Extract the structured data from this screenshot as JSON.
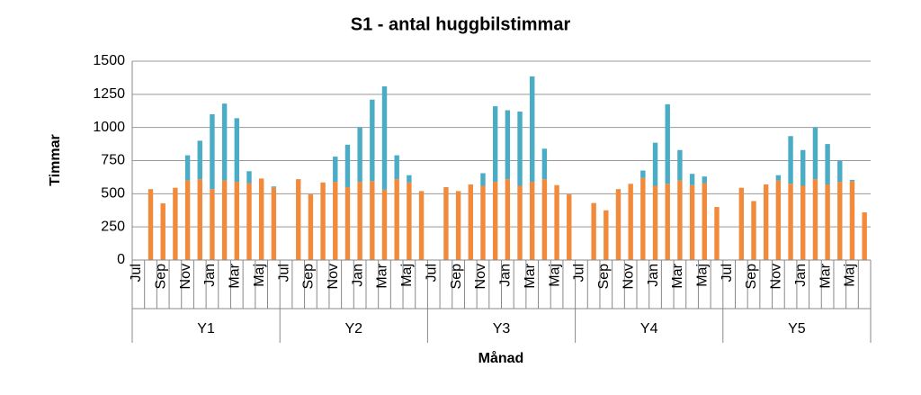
{
  "chart_data": {
    "type": "bar",
    "stacked": true,
    "title": "S1 - antal huggbilstimmar",
    "x_label": "Månad",
    "y_label": "Timmar",
    "categories": [
      "Jul",
      null,
      "Sep",
      null,
      "Nov",
      null,
      "Jan",
      null,
      "Mar",
      null,
      "Maj",
      null,
      "Jul",
      null,
      "Sep",
      null,
      "Nov",
      null,
      "Jan",
      null,
      "Mar",
      null,
      "Maj",
      null,
      "Jul",
      null,
      "Sep",
      null,
      "Nov",
      null,
      "Jan",
      null,
      "Mar",
      null,
      "Maj",
      null,
      "Jul",
      null,
      "Sep",
      null,
      "Nov",
      null,
      "Jan",
      null,
      "Mar",
      null,
      "Maj",
      null,
      "Jul",
      null,
      "Sep",
      null,
      "Nov",
      null,
      "Jan",
      null,
      "Mar",
      null,
      "Maj",
      null
    ],
    "groups": [
      "Y1",
      "Y2",
      "Y3",
      "Y4",
      "Y5"
    ],
    "series": [
      {
        "color": "#f28a3c",
        "values": [
          null,
          535,
          428,
          545,
          600,
          610,
          535,
          600,
          590,
          580,
          615,
          545,
          null,
          610,
          495,
          585,
          590,
          550,
          590,
          595,
          530,
          610,
          585,
          520,
          null,
          550,
          520,
          570,
          560,
          590,
          610,
          560,
          590,
          610,
          565,
          495,
          null,
          430,
          375,
          535,
          575,
          620,
          560,
          575,
          600,
          565,
          580,
          400,
          null,
          545,
          445,
          570,
          600,
          575,
          560,
          610,
          570,
          590,
          595,
          360
        ]
      },
      {
        "color": "#4bacc6",
        "values": [
          null,
          0,
          0,
          0,
          190,
          290,
          565,
          580,
          480,
          90,
          0,
          10,
          null,
          0,
          0,
          0,
          190,
          320,
          410,
          615,
          780,
          180,
          55,
          0,
          null,
          0,
          0,
          0,
          95,
          570,
          520,
          560,
          795,
          230,
          0,
          0,
          null,
          0,
          0,
          0,
          0,
          55,
          325,
          600,
          230,
          85,
          50,
          0,
          null,
          0,
          0,
          0,
          40,
          360,
          270,
          390,
          305,
          160,
          10,
          0
        ]
      }
    ],
    "ylim": [
      0,
      1500
    ],
    "yticks": [
      0,
      250,
      500,
      750,
      1000,
      1250,
      1500
    ],
    "grid": true
  }
}
